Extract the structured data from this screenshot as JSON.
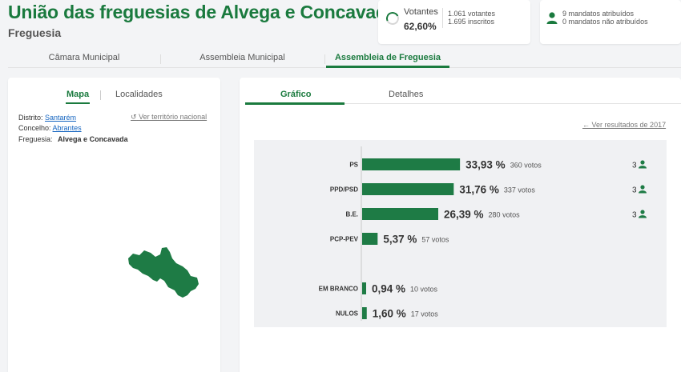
{
  "header": {
    "title": "União das freguesias de Alvega e Concavada",
    "subtitle": "Freguesia"
  },
  "turnout": {
    "label": "Votantes",
    "percent": "62,60%",
    "votantes": "1.061 votantes",
    "inscritos": "1.695 inscritos",
    "spinner_icon": "turnout-ring-icon"
  },
  "mandates": {
    "icon": "person-icon",
    "assigned": "9 mandatos atribuídos",
    "unassigned": "0 mandatos não atribuídos"
  },
  "main_tabs": [
    {
      "label": "Câmara Municipal",
      "active": false
    },
    {
      "label": "Assembleia Municipal",
      "active": false
    },
    {
      "label": "Assembleia de Freguesia",
      "active": true
    }
  ],
  "left_panel": {
    "tabs": [
      {
        "label": "Mapa",
        "active": true
      },
      {
        "label": "Localidades",
        "active": false
      }
    ],
    "distrito_label": "Distrito:",
    "distrito_value": "Santarém",
    "concelho_label": "Concelho:",
    "concelho_value": "Abrantes",
    "freguesia_label": "Freguesia:",
    "freguesia_value": "Alvega e Concavada",
    "national_link": "Ver território nacional",
    "national_icon": "undo-icon"
  },
  "right_panel": {
    "tabs": [
      {
        "label": "Gráfico",
        "active": true
      },
      {
        "label": "Detalhes",
        "active": false
      }
    ],
    "previous_link": "Ver resultados de 2017",
    "previous_icon": "arrow-left-icon"
  },
  "colors": {
    "accent": "#1a7a3e",
    "bar": "#1e7b45",
    "link": "#1565c0"
  },
  "chart_data": {
    "type": "bar",
    "orientation": "horizontal",
    "categories": [
      "PS",
      "PPD/PSD",
      "B.E.",
      "PCP-PEV",
      "EM BRANCO",
      "NULOS"
    ],
    "values": [
      33.93,
      31.76,
      26.39,
      5.37,
      0.94,
      1.6
    ],
    "value_labels": [
      "33,93 %",
      "31,76 %",
      "26,39 %",
      "5,37 %",
      "0,94 %",
      "1,60 %"
    ],
    "votes_labels": [
      "360 votos",
      "337 votos",
      "280 votos",
      "57 votos",
      "10 votos",
      "17 votos"
    ],
    "mandates": [
      "3",
      "3",
      "3",
      "",
      "",
      ""
    ],
    "mandate_icon": "person-icon"
  }
}
